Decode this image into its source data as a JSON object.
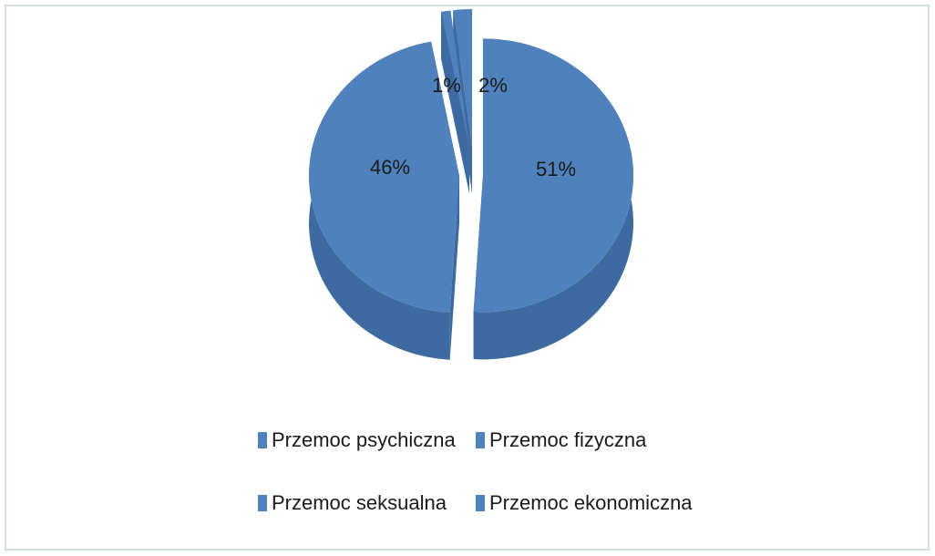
{
  "chart_data": {
    "type": "pie",
    "categories": [
      "Przemoc psychiczna",
      "Przemoc fizyczna",
      "Przemoc seksualna",
      "Przemoc ekonomiczna"
    ],
    "values": [
      51,
      46,
      1,
      2
    ],
    "value_labels": [
      "51%",
      "46%",
      "1%",
      "2%"
    ],
    "color": "#4f81bd",
    "legend": "bottom"
  }
}
